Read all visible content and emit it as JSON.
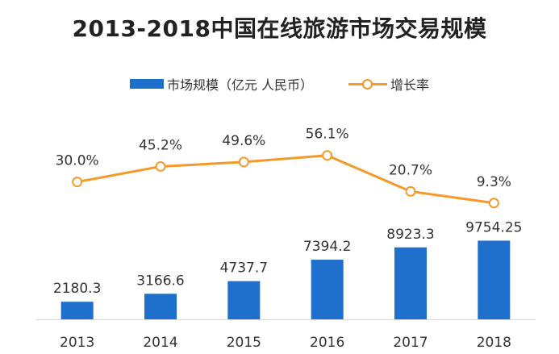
{
  "chart_data": {
    "type": "bar",
    "title": "2013-2018中国在线旅游市场交易规模",
    "categories": [
      "2013",
      "2014",
      "2015",
      "2016",
      "2017",
      "2018"
    ],
    "series": [
      {
        "name": "市场规模（亿元 人民币）",
        "type": "bar",
        "values": [
          2180.3,
          3166.6,
          4737.7,
          7394.2,
          8923.3,
          9754.25
        ],
        "labels": [
          "2180.3",
          "3166.6",
          "4737.7",
          "7394.2",
          "8923.3",
          "9754.25"
        ],
        "color": "#1f6fcc"
      },
      {
        "name": "增长率",
        "type": "line",
        "values": [
          30.0,
          45.2,
          49.6,
          56.1,
          20.7,
          9.3
        ],
        "labels": [
          "30.0%",
          "45.2%",
          "49.6%",
          "56.1%",
          "20.7%",
          "9.3%"
        ],
        "color": "#f39a2b"
      }
    ],
    "legend_position": "top",
    "grid": false
  }
}
